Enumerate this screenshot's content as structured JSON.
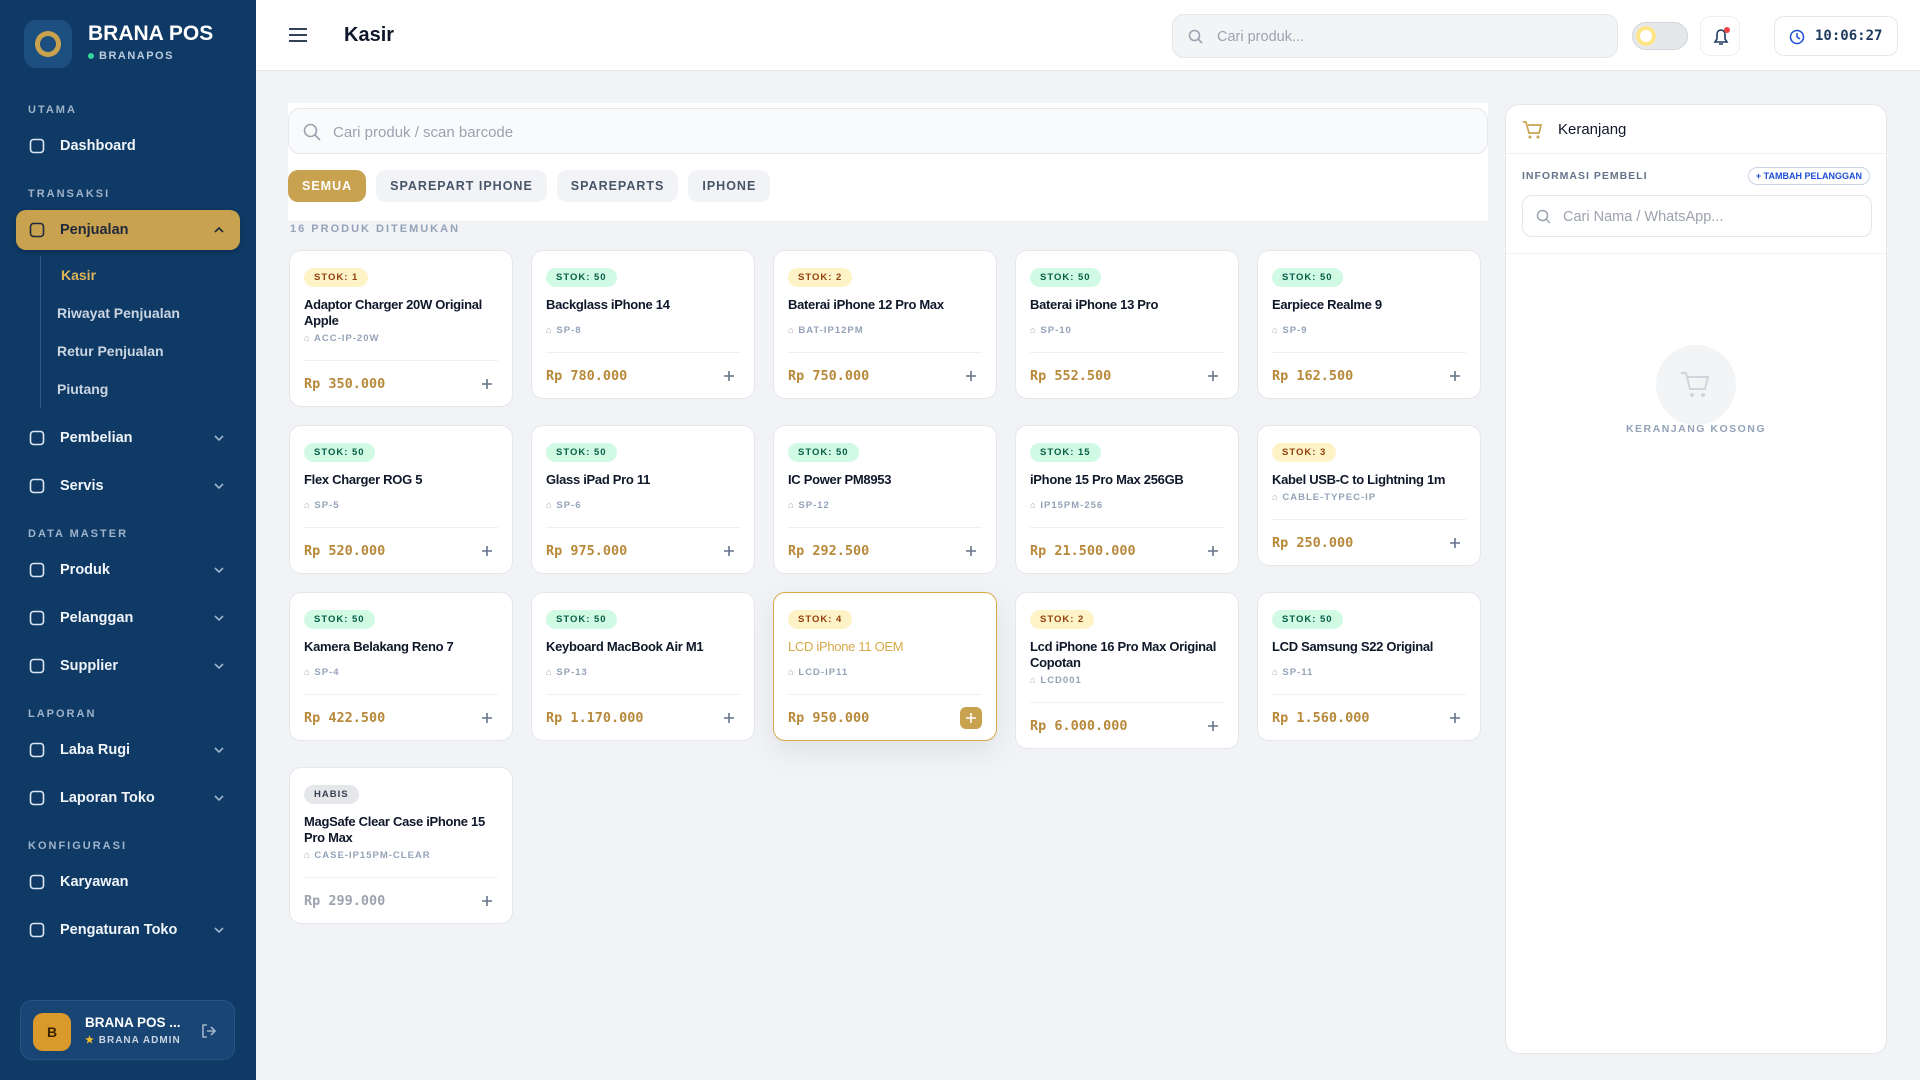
{
  "sidebar": {
    "brand": "BRANA POS",
    "brand_sub": "BRANAPOS",
    "sections": [
      {
        "title": "UTAMA",
        "items": [
          {
            "label": "Dashboard"
          }
        ]
      },
      {
        "title": "TRANSAKSI",
        "items": [
          {
            "label": "Penjualan",
            "active": true,
            "expanded": true,
            "children": [
              "Kasir",
              "Riwayat Penjualan",
              "Retur Penjualan",
              "Piutang"
            ],
            "active_child": 0
          },
          {
            "label": "Pembelian",
            "chevron": true
          },
          {
            "label": "Servis",
            "chevron": true
          }
        ]
      },
      {
        "title": "DATA MASTER",
        "items": [
          {
            "label": "Produk",
            "chevron": true
          },
          {
            "label": "Pelanggan",
            "chevron": true
          },
          {
            "label": "Supplier",
            "chevron": true
          }
        ]
      },
      {
        "title": "LAPORAN",
        "items": [
          {
            "label": "Laba Rugi",
            "chevron": true
          },
          {
            "label": "Laporan Toko",
            "chevron": true
          }
        ]
      },
      {
        "title": "KONFIGURASI",
        "items": [
          {
            "label": "Karyawan"
          },
          {
            "label": "Pengaturan Toko",
            "chevron": true
          }
        ]
      }
    ],
    "user": {
      "initial": "B",
      "name": "BRANA POS ...",
      "role": "BRANA ADMIN"
    }
  },
  "header": {
    "title": "Kasir",
    "search": "Cari produk...",
    "time": "10:06:27"
  },
  "main": {
    "search": "Cari produk / scan barcode",
    "categories": [
      "SEMUA",
      "SPAREPART IPHONE",
      "SPAREPARTS",
      "IPHONE"
    ],
    "active_category": 0,
    "count": "16 PRODUK DITEMUKAN",
    "products": [
      {
        "stock": "STOK: 1",
        "tone": "amber",
        "name": "Adaptor Charger 20W Original Apple",
        "sku": "ACC-IP-20W",
        "price": "Rp 350.000"
      },
      {
        "stock": "STOK: 50",
        "tone": "green",
        "name": "Backglass iPhone 14",
        "sku": "SP-8",
        "price": "Rp 780.000"
      },
      {
        "stock": "STOK: 2",
        "tone": "amber",
        "name": "Baterai iPhone 12 Pro Max",
        "sku": "BAT-IP12PM",
        "price": "Rp 750.000"
      },
      {
        "stock": "STOK: 50",
        "tone": "green",
        "name": "Baterai iPhone 13 Pro",
        "sku": "SP-10",
        "price": "Rp 552.500"
      },
      {
        "stock": "STOK: 50",
        "tone": "green",
        "name": "Earpiece Realme 9",
        "sku": "SP-9",
        "price": "Rp 162.500"
      },
      {
        "stock": "STOK: 50",
        "tone": "green",
        "name": "Flex Charger ROG 5",
        "sku": "SP-5",
        "price": "Rp 520.000"
      },
      {
        "stock": "STOK: 50",
        "tone": "green",
        "name": "Glass iPad Pro 11",
        "sku": "SP-6",
        "price": "Rp 975.000"
      },
      {
        "stock": "STOK: 50",
        "tone": "green",
        "name": "IC Power PM8953",
        "sku": "SP-12",
        "price": "Rp 292.500"
      },
      {
        "stock": "STOK: 15",
        "tone": "green",
        "name": "iPhone 15 Pro Max 256GB",
        "sku": "IP15PM-256",
        "price": "Rp 21.500.000"
      },
      {
        "stock": "STOK: 3",
        "tone": "amber",
        "name": "Kabel USB-C to Lightning 1m",
        "sku": "CABLE-TYPEC-IP",
        "price": "Rp 250.000"
      },
      {
        "stock": "STOK: 50",
        "tone": "green",
        "name": "Kamera Belakang Reno 7",
        "sku": "SP-4",
        "price": "Rp 422.500"
      },
      {
        "stock": "STOK: 50",
        "tone": "green",
        "name": "Keyboard MacBook Air M1",
        "sku": "SP-13",
        "price": "Rp 1.170.000"
      },
      {
        "stock": "STOK: 4",
        "tone": "amber",
        "name": "LCD iPhone 11 OEM",
        "sku": "LCD-IP11",
        "price": "Rp 950.000",
        "highlighted": true
      },
      {
        "stock": "STOK: 2",
        "tone": "amber",
        "name": "Lcd iPhone 16 Pro Max Original Copotan",
        "sku": "LCD001",
        "price": "Rp 6.000.000"
      },
      {
        "stock": "STOK: 50",
        "tone": "green",
        "name": "LCD Samsung S22 Original",
        "sku": "SP-11",
        "price": "Rp 1.560.000"
      },
      {
        "stock": "HABIS",
        "tone": "gray",
        "name": "MagSafe Clear Case iPhone 15 Pro Max",
        "sku": "CASE-IP15PM-CLEAR",
        "price": "Rp 299.000"
      }
    ]
  },
  "cart": {
    "title": "Keranjang",
    "buyer_label": "INFORMASI PEMBELI",
    "add_customer": "+ TAMBAH PELANGGAN",
    "search": "Cari Nama / WhatsApp...",
    "empty": "KERANJANG KOSONG"
  }
}
